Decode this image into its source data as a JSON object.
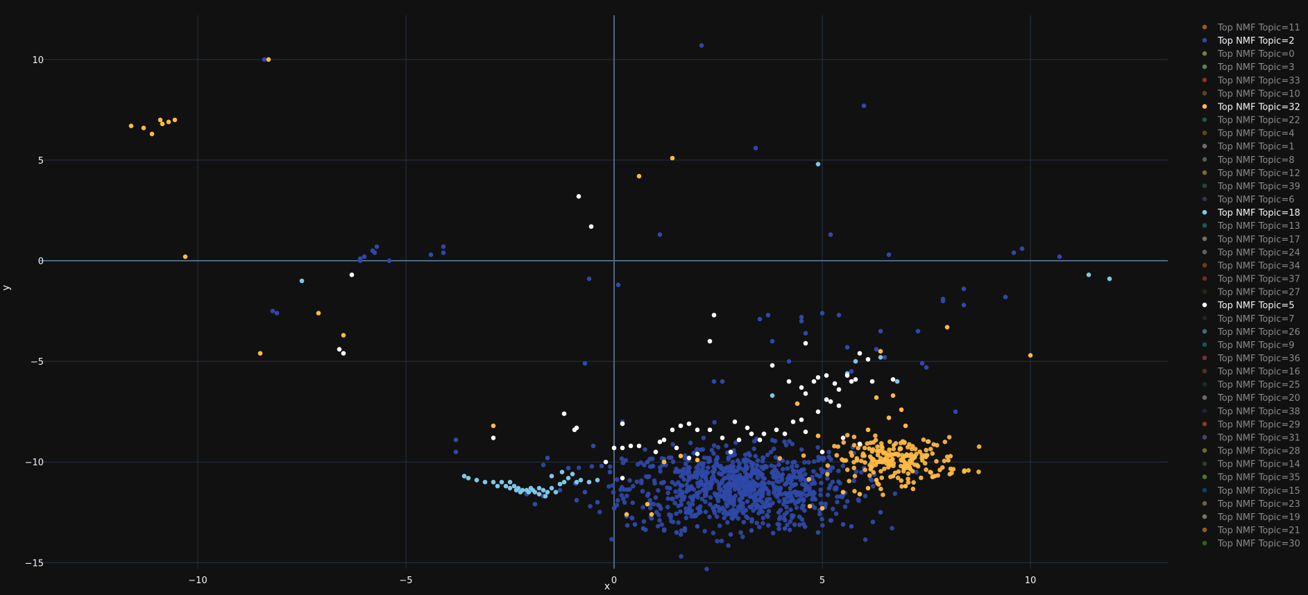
{
  "chart_data": {
    "type": "scatter",
    "title": "",
    "xlabel": "x",
    "ylabel": "y",
    "xlim": [
      -13.8,
      13.3
    ],
    "ylim": [
      -15.3,
      12.2
    ],
    "x_ticks": [
      -10,
      -5,
      0,
      5,
      10
    ],
    "y_ticks": [
      -15,
      -10,
      -5,
      0,
      5,
      10
    ],
    "x_tick_labels": [
      "−10",
      "−5",
      "0",
      "5",
      "10"
    ],
    "y_tick_labels": [
      "−15",
      "−10",
      "−5",
      "0",
      "5",
      "10"
    ],
    "grid": true,
    "legend_position": "right",
    "legend": [
      {
        "label": "Top NMF Topic=11",
        "color": "#c0772a",
        "highlight": false
      },
      {
        "label": "Top NMF Topic=2",
        "color": "#2f49a8",
        "highlight": true
      },
      {
        "label": "Top NMF Topic=0",
        "color": "#9a9a6a",
        "highlight": false
      },
      {
        "label": "Top NMF Topic=3",
        "color": "#7aa37a",
        "highlight": false
      },
      {
        "label": "Top NMF Topic=33",
        "color": "#b0402a",
        "highlight": false
      },
      {
        "label": "Top NMF Topic=10",
        "color": "#6a5a2a",
        "highlight": false
      },
      {
        "label": "Top NMF Topic=32",
        "color": "#ffbb44",
        "highlight": true
      },
      {
        "label": "Top NMF Topic=22",
        "color": "#2a6a5a",
        "highlight": false
      },
      {
        "label": "Top NMF Topic=4",
        "color": "#7a5a1a",
        "highlight": false
      },
      {
        "label": "Top NMF Topic=1",
        "color": "#9a8a8a",
        "highlight": false
      },
      {
        "label": "Top NMF Topic=8",
        "color": "#6a7a6a",
        "highlight": false
      },
      {
        "label": "Top NMF Topic=12",
        "color": "#a08a2a",
        "highlight": false
      },
      {
        "label": "Top NMF Topic=39",
        "color": "#2a5a3a",
        "highlight": false
      },
      {
        "label": "Top NMF Topic=6",
        "color": "#4a3a6a",
        "highlight": false
      },
      {
        "label": "Top NMF Topic=18",
        "color": "#7ec8e8",
        "highlight": true
      },
      {
        "label": "Top NMF Topic=13",
        "color": "#2a6a7a",
        "highlight": false
      },
      {
        "label": "Top NMF Topic=17",
        "color": "#a08a6a",
        "highlight": false
      },
      {
        "label": "Top NMF Topic=24",
        "color": "#7a7a7a",
        "highlight": false
      },
      {
        "label": "Top NMF Topic=34",
        "color": "#8a4a1a",
        "highlight": false
      },
      {
        "label": "Top NMF Topic=37",
        "color": "#8a3a2a",
        "highlight": false
      },
      {
        "label": "Top NMF Topic=27",
        "color": "#3a2a1a",
        "highlight": false
      },
      {
        "label": "Top NMF Topic=5",
        "color": "#ffffff",
        "highlight": true
      },
      {
        "label": "Top NMF Topic=7",
        "color": "#2a2a2a",
        "highlight": false
      },
      {
        "label": "Top NMF Topic=26",
        "color": "#5a8a9a",
        "highlight": false
      },
      {
        "label": "Top NMF Topic=9",
        "color": "#1a6a7a",
        "highlight": false
      },
      {
        "label": "Top NMF Topic=36",
        "color": "#9a3a4a",
        "highlight": false
      },
      {
        "label": "Top NMF Topic=16",
        "color": "#6a3a2a",
        "highlight": false
      },
      {
        "label": "Top NMF Topic=25",
        "color": "#1a3a2a",
        "highlight": false
      },
      {
        "label": "Top NMF Topic=20",
        "color": "#8a8a8a",
        "highlight": false
      },
      {
        "label": "Top NMF Topic=38",
        "color": "#1a2a4a",
        "highlight": false
      },
      {
        "label": "Top NMF Topic=29",
        "color": "#b04a2a",
        "highlight": false
      },
      {
        "label": "Top NMF Topic=31",
        "color": "#5a5a8a",
        "highlight": false
      },
      {
        "label": "Top NMF Topic=28",
        "color": "#8a8a2a",
        "highlight": false
      },
      {
        "label": "Top NMF Topic=14",
        "color": "#3a4a3a",
        "highlight": false
      },
      {
        "label": "Top NMF Topic=35",
        "color": "#6a9a2a",
        "highlight": false
      },
      {
        "label": "Top NMF Topic=15",
        "color": "#1a4a8a",
        "highlight": false
      },
      {
        "label": "Top NMF Topic=23",
        "color": "#8a7a5a",
        "highlight": false
      },
      {
        "label": "Top NMF Topic=19",
        "color": "#a09a7a",
        "highlight": false
      },
      {
        "label": "Top NMF Topic=21",
        "color": "#c07a2a",
        "highlight": false
      },
      {
        "label": "Top NMF Topic=30",
        "color": "#3a7a2a",
        "highlight": false
      }
    ],
    "series": [
      {
        "name": "Top NMF Topic=2",
        "color": "#2f49a8",
        "points": [
          [
            -8.4,
            10.0
          ],
          [
            2.1,
            10.7
          ],
          [
            6.0,
            7.7
          ],
          [
            3.4,
            5.6
          ],
          [
            1.1,
            1.3
          ],
          [
            5.2,
            1.3
          ],
          [
            6.6,
            0.3
          ],
          [
            9.6,
            0.4
          ],
          [
            9.8,
            0.6
          ],
          [
            10.7,
            0.2
          ],
          [
            -6.1,
            0.1
          ],
          [
            -6.0,
            0.2
          ],
          [
            -5.8,
            0.5
          ],
          [
            -5.75,
            0.4
          ],
          [
            -5.7,
            0.7
          ],
          [
            -5.4,
            0.0
          ],
          [
            -4.4,
            0.3
          ],
          [
            -4.1,
            0.4
          ],
          [
            -4.1,
            0.7
          ],
          [
            -6.1,
            0.0
          ],
          [
            -0.6,
            -0.9
          ],
          [
            0.1,
            -1.2
          ],
          [
            -8.2,
            -2.5
          ],
          [
            -8.1,
            -2.6
          ],
          [
            7.9,
            -1.9
          ],
          [
            7.9,
            -2.0
          ],
          [
            8.4,
            -1.4
          ],
          [
            8.4,
            -2.2
          ],
          [
            9.4,
            -1.8
          ],
          [
            3.5,
            -2.9
          ],
          [
            3.7,
            -2.7
          ],
          [
            4.5,
            -2.8
          ],
          [
            5.0,
            -2.6
          ],
          [
            5.4,
            -2.7
          ],
          [
            6.4,
            -3.5
          ],
          [
            7.3,
            -3.5
          ],
          [
            7.4,
            -5.1
          ],
          [
            7.5,
            -5.3
          ],
          [
            -0.7,
            -5.1
          ],
          [
            2.4,
            -6.0
          ],
          [
            2.6,
            -6.0
          ],
          [
            8.2,
            -7.5
          ],
          [
            -3.8,
            -8.9
          ],
          [
            -3.8,
            -9.5
          ],
          [
            -1.6,
            -9.8
          ],
          [
            -1.1,
            -10.3
          ],
          [
            -0.5,
            -9.2
          ],
          [
            -0.3,
            -10.2
          ],
          [
            -0.1,
            -10.5
          ],
          [
            0.2,
            -8.0
          ],
          [
            0.8,
            -10.0
          ],
          [
            1.0,
            -9.5
          ],
          [
            4.5,
            -3.0
          ],
          [
            4.6,
            -3.6
          ],
          [
            3.8,
            -4.0
          ],
          [
            4.2,
            -5.0
          ],
          [
            5.6,
            -4.3
          ],
          [
            6.3,
            -4.4
          ],
          [
            6.5,
            -4.8
          ],
          [
            5.7,
            -5.5
          ],
          [
            -0.7,
            -11.5
          ],
          [
            -0.9,
            -11.9
          ],
          [
            -1.3,
            -11.4
          ],
          [
            -1.7,
            -11.7
          ],
          [
            -1.9,
            -12.1
          ],
          [
            -2.1,
            -11.6
          ],
          [
            0.5,
            -13.1
          ],
          [
            0.7,
            -13.3
          ],
          [
            1.2,
            -13.4
          ],
          [
            1.5,
            -13.5
          ],
          [
            1.7,
            -13.3
          ],
          [
            2.0,
            -13.2
          ],
          [
            2.8,
            -13.6
          ],
          [
            3.3,
            -13.4
          ],
          [
            4.1,
            -13.3
          ],
          [
            4.9,
            -13.5
          ],
          [
            5.5,
            -13.1
          ],
          [
            5.7,
            -13.2
          ],
          [
            6.4,
            -12.5
          ],
          [
            5.2,
            -12.9
          ],
          [
            0.3,
            -12.7
          ],
          [
            0.0,
            -12.3
          ],
          [
            -0.4,
            -12.0
          ],
          [
            0.9,
            -12.8
          ]
        ],
        "cluster": {
          "center": [
            3.0,
            -11.3
          ],
          "spread": [
            1.35,
            1.0
          ],
          "count": 880
        }
      },
      {
        "name": "Top NMF Topic=32",
        "color": "#ffbb44",
        "points": [
          [
            -8.3,
            10.0
          ],
          [
            -11.6,
            6.7
          ],
          [
            -11.3,
            6.6
          ],
          [
            -11.1,
            6.3
          ],
          [
            -10.9,
            7.0
          ],
          [
            -10.85,
            6.8
          ],
          [
            -10.7,
            6.9
          ],
          [
            -10.55,
            7.0
          ],
          [
            -10.3,
            0.2
          ],
          [
            0.6,
            4.2
          ],
          [
            1.4,
            5.1
          ],
          [
            -7.1,
            -2.6
          ],
          [
            -8.5,
            -4.6
          ],
          [
            -6.5,
            -3.7
          ],
          [
            -2.9,
            -8.2
          ],
          [
            8.0,
            -3.3
          ],
          [
            10.0,
            -4.7
          ],
          [
            4.4,
            -7.1
          ],
          [
            0.3,
            -12.6
          ],
          [
            0.8,
            -12.1
          ],
          [
            0.9,
            -12.6
          ],
          [
            4.7,
            -12.2
          ],
          [
            5.0,
            -12.3
          ],
          [
            5.5,
            -11.5
          ],
          [
            5.9,
            -11.6
          ],
          [
            6.1,
            -11.3
          ],
          [
            6.3,
            -10.9
          ],
          [
            6.7,
            -10.7
          ],
          [
            7.0,
            -11.2
          ],
          [
            7.7,
            -10.7
          ],
          [
            1.2,
            -10.0
          ],
          [
            1.6,
            -9.7
          ],
          [
            2.0,
            -9.9
          ],
          [
            6.3,
            -6.8
          ],
          [
            6.7,
            -6.7
          ],
          [
            6.6,
            -7.8
          ],
          [
            6.9,
            -7.4
          ],
          [
            7.0,
            -8.2
          ],
          [
            6.4,
            -4.5
          ],
          [
            6.1,
            -8.4
          ],
          [
            4.9,
            -8.7
          ]
        ],
        "cluster": {
          "center": [
            6.8,
            -9.9
          ],
          "spread": [
            0.75,
            0.55
          ],
          "count": 210
        }
      },
      {
        "name": "Top NMF Topic=18",
        "color": "#7ec8e8",
        "points": [
          [
            4.9,
            4.8
          ],
          [
            -7.5,
            -1.0
          ],
          [
            11.4,
            -0.7
          ],
          [
            11.9,
            -0.9
          ],
          [
            6.4,
            -4.8
          ],
          [
            5.8,
            -5.0
          ],
          [
            5.6,
            -5.6
          ],
          [
            6.8,
            -6.0
          ],
          [
            3.8,
            -6.7
          ],
          [
            -3.6,
            -10.7
          ],
          [
            -3.5,
            -10.8
          ],
          [
            -3.3,
            -10.9
          ],
          [
            -3.1,
            -11.0
          ],
          [
            -2.9,
            -11.0
          ],
          [
            -2.7,
            -11.0
          ],
          [
            -2.6,
            -11.2
          ],
          [
            -2.5,
            -11.3
          ],
          [
            -2.4,
            -11.2
          ],
          [
            -2.35,
            -11.4
          ],
          [
            -2.3,
            -11.3
          ],
          [
            -2.25,
            -11.5
          ],
          [
            -2.2,
            -11.4
          ],
          [
            -2.1,
            -11.4
          ],
          [
            -2.05,
            -11.5
          ],
          [
            -2.0,
            -11.3
          ],
          [
            -1.95,
            -11.4
          ],
          [
            -1.9,
            -11.5
          ],
          [
            -1.8,
            -11.6
          ],
          [
            -1.7,
            -11.4
          ],
          [
            -1.6,
            -11.5
          ],
          [
            -1.5,
            -11.3
          ],
          [
            -1.4,
            -11.5
          ],
          [
            -1.3,
            -11.1
          ],
          [
            -1.2,
            -11.0
          ],
          [
            -1.1,
            -10.8
          ],
          [
            -1.0,
            -10.6
          ],
          [
            -0.9,
            -11.0
          ],
          [
            -0.8,
            -10.9
          ],
          [
            -0.6,
            -11.0
          ],
          [
            -0.4,
            -10.9
          ],
          [
            -1.8,
            -11.3
          ],
          [
            -1.65,
            -11.7
          ],
          [
            -2.5,
            -11.0
          ],
          [
            -2.8,
            -11.2
          ],
          [
            -1.5,
            -10.7
          ],
          [
            -1.25,
            -10.5
          ]
        ]
      },
      {
        "name": "Top NMF Topic=5",
        "color": "#ffffff",
        "points": [
          [
            -0.85,
            3.2
          ],
          [
            -0.55,
            1.7
          ],
          [
            -6.3,
            -0.7
          ],
          [
            -6.6,
            -4.4
          ],
          [
            -6.5,
            -4.6
          ],
          [
            2.4,
            -2.7
          ],
          [
            2.3,
            -4.0
          ],
          [
            4.6,
            -4.1
          ],
          [
            -1.2,
            -7.6
          ],
          [
            -0.9,
            -8.3
          ],
          [
            -0.95,
            -8.4
          ],
          [
            -2.9,
            -8.8
          ],
          [
            3.8,
            -5.2
          ],
          [
            4.2,
            -6.0
          ],
          [
            4.5,
            -6.3
          ],
          [
            4.6,
            -6.6
          ],
          [
            4.8,
            -6.0
          ],
          [
            4.9,
            -5.8
          ],
          [
            5.1,
            -5.7
          ],
          [
            5.3,
            -6.1
          ],
          [
            5.4,
            -6.4
          ],
          [
            5.7,
            -6.0
          ],
          [
            5.8,
            -5.9
          ],
          [
            5.6,
            -5.7
          ],
          [
            5.9,
            -4.6
          ],
          [
            6.1,
            -4.9
          ],
          [
            5.2,
            -7.0
          ],
          [
            5.4,
            -7.2
          ],
          [
            5.1,
            -6.9
          ],
          [
            4.9,
            -7.5
          ],
          [
            4.5,
            -7.9
          ],
          [
            4.3,
            -8.0
          ],
          [
            3.9,
            -8.4
          ],
          [
            3.6,
            -8.6
          ],
          [
            3.2,
            -8.3
          ],
          [
            2.9,
            -8.0
          ],
          [
            2.6,
            -8.8
          ],
          [
            2.3,
            -8.4
          ],
          [
            2.0,
            -8.4
          ],
          [
            1.8,
            -8.1
          ],
          [
            1.6,
            -8.2
          ],
          [
            1.4,
            -8.4
          ],
          [
            1.2,
            -8.9
          ],
          [
            1.0,
            -9.5
          ],
          [
            0.6,
            -9.2
          ],
          [
            0.4,
            -9.2
          ],
          [
            0.2,
            -9.3
          ],
          [
            0.0,
            -9.3
          ],
          [
            -0.2,
            -10.0
          ],
          [
            0.2,
            -10.8
          ],
          [
            1.5,
            -9.3
          ],
          [
            2.0,
            -9.6
          ],
          [
            1.8,
            -9.8
          ],
          [
            2.8,
            -9.5
          ],
          [
            3.0,
            -8.9
          ],
          [
            3.3,
            -8.6
          ],
          [
            3.5,
            -8.9
          ],
          [
            4.1,
            -8.6
          ],
          [
            4.6,
            -8.5
          ],
          [
            5.0,
            -9.5
          ],
          [
            5.5,
            -8.8
          ],
          [
            5.9,
            -9.1
          ],
          [
            6.2,
            -6.0
          ],
          [
            6.7,
            -5.9
          ],
          [
            0.2,
            -8.1
          ],
          [
            1.1,
            -9.0
          ]
        ]
      }
    ]
  }
}
